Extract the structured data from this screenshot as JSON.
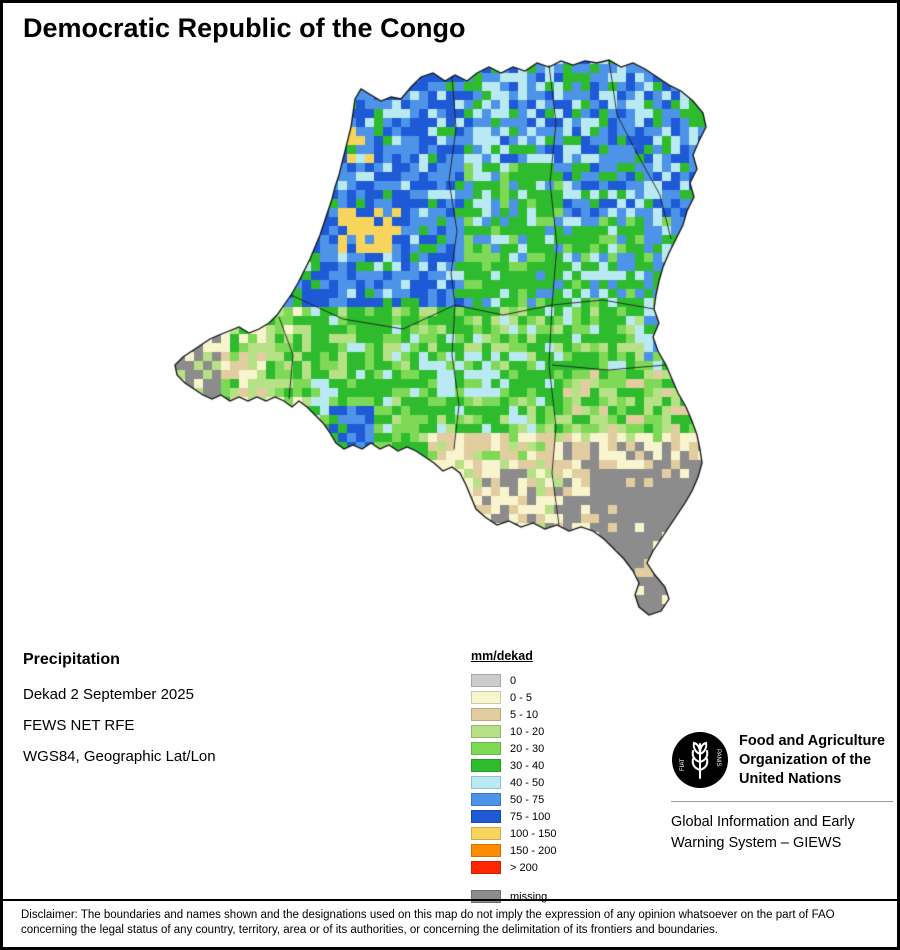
{
  "title": "Democratic Republic of the Congo",
  "info": {
    "heading": "Precipitation",
    "lines": [
      "Dekad 2 September 2025",
      "FEWS NET RFE",
      "WGS84, Geographic Lat/Lon"
    ]
  },
  "legend": {
    "title": "mm/dekad",
    "entries": [
      {
        "label": "0",
        "color": "#cccccc"
      },
      {
        "label": "0 - 5",
        "color": "#f8f4cd"
      },
      {
        "label": "5 - 10",
        "color": "#e2cda1"
      },
      {
        "label": "10 - 20",
        "color": "#b6e186"
      },
      {
        "label": "20 - 30",
        "color": "#7ed957"
      },
      {
        "label": "30 - 40",
        "color": "#2ebc2e"
      },
      {
        "label": "40 - 50",
        "color": "#b9e9f2"
      },
      {
        "label": "50 - 75",
        "color": "#4d94e8"
      },
      {
        "label": "75 - 100",
        "color": "#1f5ad6"
      },
      {
        "label": "100 - 150",
        "color": "#f7d55c"
      },
      {
        "label": "150 - 200",
        "color": "#ff8c00"
      },
      {
        "label": "> 200",
        "color": "#ff2600"
      }
    ],
    "missing": {
      "label": "missing",
      "color": "#8c8c8c"
    }
  },
  "org": {
    "logo": "fao-emblem",
    "logo_motto_1": "FIAT",
    "logo_motto_2": "PANIS",
    "name_lines": [
      "Food and Agriculture",
      "Organization of the",
      "United Nations"
    ],
    "subtitle_lines": [
      "Global Information and Early",
      "Warning System – GIEWS"
    ]
  },
  "disclaimer": "Disclaimer: The boundaries and names shown and the designations used on this map do not imply the expression of any opinion whatsoever on the part of FAO concerning the legal status of any country, territory, area or of its authorities, or concerning the delimitation of its frontiers and boundaries."
}
